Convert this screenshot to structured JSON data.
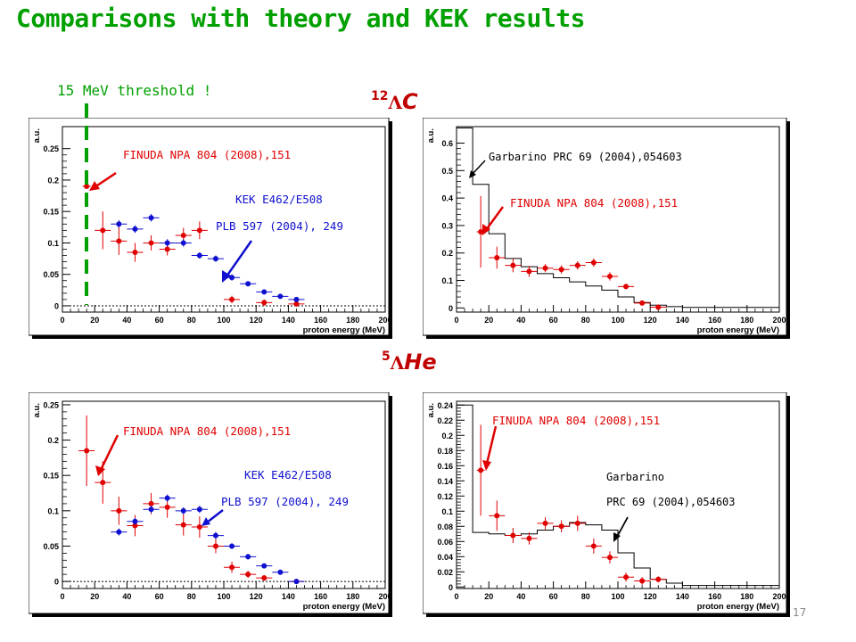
{
  "title": "Comparisons with theory and KEK results",
  "threshold_label": "15 MeV threshold !",
  "page_number": "17",
  "nuclei": {
    "c12": {
      "mass": "12",
      "lambda": "Λ",
      "element": "C"
    },
    "he5": {
      "mass": "5",
      "lambda": "Λ",
      "element": "He"
    }
  },
  "annotations": {
    "finuda": "FINUDA   NPA 804 (2008),151",
    "kek_line1": "KEK E462/E508",
    "kek_line2": "PLB 597 (2004), 249",
    "garbarino_c12": "Garbarino  PRC 69 (2004),054603",
    "garbarino_he_1": "Garbarino",
    "garbarino_he_2": "PRC 69 (2004),054603"
  },
  "colors": {
    "finuda": "#e00000",
    "kek": "#1010d0",
    "title": "#00a000",
    "threshold_line": "#00a000",
    "nucleus_label": "#c00000"
  },
  "chart_data": [
    {
      "type": "scatter",
      "panel": "top-left",
      "xlabel": "proton energy (MeV)",
      "ylabel": "a.u.",
      "xlim": [
        0,
        200
      ],
      "ylim": [
        -0.01,
        0.285
      ],
      "xticks": [
        0,
        20,
        40,
        60,
        80,
        100,
        120,
        140,
        160,
        180,
        200
      ],
      "yticks": [
        0,
        0.05,
        0.1,
        0.15,
        0.2,
        0.25
      ],
      "zero_line": true,
      "threshold_x": 15,
      "series": [
        {
          "name": "FINUDA",
          "color": "#e00000",
          "points": [
            {
              "x": 15,
              "y": 0.19,
              "ex": 2.5,
              "ey": 0.0
            },
            {
              "x": 25,
              "y": 0.12,
              "ex": 5,
              "ey": 0.03
            },
            {
              "x": 35,
              "y": 0.103,
              "ex": 5,
              "ey": 0.022
            },
            {
              "x": 45,
              "y": 0.085,
              "ex": 5,
              "ey": 0.015
            },
            {
              "x": 55,
              "y": 0.1,
              "ex": 5,
              "ey": 0.012
            },
            {
              "x": 65,
              "y": 0.09,
              "ex": 5,
              "ey": 0.01
            },
            {
              "x": 75,
              "y": 0.112,
              "ex": 5,
              "ey": 0.012
            },
            {
              "x": 85,
              "y": 0.12,
              "ex": 5,
              "ey": 0.014
            },
            {
              "x": 105,
              "y": 0.01,
              "ex": 5,
              "ey": 0.006
            },
            {
              "x": 125,
              "y": 0.005,
              "ex": 5,
              "ey": 0.005
            },
            {
              "x": 145,
              "y": 0.003,
              "ex": 5,
              "ey": 0.003
            }
          ]
        },
        {
          "name": "KEK",
          "color": "#1010d0",
          "points": [
            {
              "x": 35,
              "y": 0.13,
              "ex": 5,
              "ey": 0.006
            },
            {
              "x": 45,
              "y": 0.122,
              "ex": 5,
              "ey": 0.006
            },
            {
              "x": 55,
              "y": 0.14,
              "ex": 5,
              "ey": 0.006
            },
            {
              "x": 65,
              "y": 0.1,
              "ex": 5,
              "ey": 0.006
            },
            {
              "x": 75,
              "y": 0.1,
              "ex": 5,
              "ey": 0.006
            },
            {
              "x": 85,
              "y": 0.08,
              "ex": 5,
              "ey": 0.005
            },
            {
              "x": 95,
              "y": 0.075,
              "ex": 5,
              "ey": 0.005
            },
            {
              "x": 105,
              "y": 0.045,
              "ex": 5,
              "ey": 0.005
            },
            {
              "x": 115,
              "y": 0.035,
              "ex": 5,
              "ey": 0.004
            },
            {
              "x": 125,
              "y": 0.022,
              "ex": 5,
              "ey": 0.004
            },
            {
              "x": 135,
              "y": 0.015,
              "ex": 5,
              "ey": 0.003
            },
            {
              "x": 145,
              "y": 0.01,
              "ex": 5,
              "ey": 0.003
            }
          ]
        }
      ]
    },
    {
      "type": "scatter",
      "panel": "top-right",
      "xlabel": "proton energy (MeV)",
      "ylabel": "a.u.",
      "xlim": [
        0,
        200
      ],
      "ylim": [
        -0.015,
        0.66
      ],
      "xticks": [
        0,
        20,
        40,
        60,
        80,
        100,
        120,
        140,
        160,
        180,
        200
      ],
      "yticks": [
        0,
        0.1,
        0.2,
        0.3,
        0.4,
        0.5,
        0.6
      ],
      "zero_line": false,
      "histogram": {
        "name": "Garbarino",
        "edges": [
          0,
          10,
          20,
          30,
          40,
          50,
          60,
          70,
          80,
          90,
          100,
          110,
          120,
          130,
          140,
          200
        ],
        "values": [
          0.655,
          0.45,
          0.27,
          0.18,
          0.15,
          0.125,
          0.11,
          0.095,
          0.08,
          0.065,
          0.04,
          0.02,
          0.01,
          0.005,
          0.002
        ]
      },
      "series": [
        {
          "name": "FINUDA",
          "color": "#e00000",
          "points": [
            {
              "x": 15,
              "y": 0.277,
              "ex": 2.5,
              "ey": 0.13
            },
            {
              "x": 25,
              "y": 0.183,
              "ex": 5,
              "ey": 0.04
            },
            {
              "x": 35,
              "y": 0.155,
              "ex": 5,
              "ey": 0.025
            },
            {
              "x": 45,
              "y": 0.133,
              "ex": 5,
              "ey": 0.02
            },
            {
              "x": 55,
              "y": 0.145,
              "ex": 5,
              "ey": 0.015
            },
            {
              "x": 65,
              "y": 0.14,
              "ex": 5,
              "ey": 0.015
            },
            {
              "x": 75,
              "y": 0.155,
              "ex": 5,
              "ey": 0.015
            },
            {
              "x": 85,
              "y": 0.165,
              "ex": 5,
              "ey": 0.015
            },
            {
              "x": 95,
              "y": 0.115,
              "ex": 5,
              "ey": 0.015
            },
            {
              "x": 105,
              "y": 0.078,
              "ex": 5,
              "ey": 0.01
            },
            {
              "x": 115,
              "y": 0.018,
              "ex": 5,
              "ey": 0.006
            },
            {
              "x": 125,
              "y": 0.003,
              "ex": 5,
              "ey": 0.003
            }
          ]
        }
      ]
    },
    {
      "type": "scatter",
      "panel": "bottom-left",
      "xlabel": "proton energy (MeV)",
      "ylabel": "a.u.",
      "xlim": [
        0,
        200
      ],
      "ylim": [
        -0.01,
        0.255
      ],
      "xticks": [
        0,
        20,
        40,
        60,
        80,
        100,
        120,
        140,
        160,
        180,
        200
      ],
      "yticks": [
        0,
        0.05,
        0.1,
        0.15,
        0.2,
        0.25
      ],
      "zero_line": true,
      "series": [
        {
          "name": "FINUDA",
          "color": "#e00000",
          "points": [
            {
              "x": 15,
              "y": 0.185,
              "ex": 5,
              "ey": 0.05
            },
            {
              "x": 25,
              "y": 0.14,
              "ex": 5,
              "ey": 0.03
            },
            {
              "x": 35,
              "y": 0.1,
              "ex": 5,
              "ey": 0.02
            },
            {
              "x": 45,
              "y": 0.079,
              "ex": 5,
              "ey": 0.015
            },
            {
              "x": 55,
              "y": 0.11,
              "ex": 5,
              "ey": 0.015
            },
            {
              "x": 65,
              "y": 0.105,
              "ex": 5,
              "ey": 0.015
            },
            {
              "x": 75,
              "y": 0.08,
              "ex": 5,
              "ey": 0.015
            },
            {
              "x": 85,
              "y": 0.077,
              "ex": 5,
              "ey": 0.015
            },
            {
              "x": 95,
              "y": 0.05,
              "ex": 5,
              "ey": 0.01
            },
            {
              "x": 105,
              "y": 0.02,
              "ex": 5,
              "ey": 0.008
            },
            {
              "x": 115,
              "y": 0.01,
              "ex": 5,
              "ey": 0.005
            },
            {
              "x": 125,
              "y": 0.005,
              "ex": 5,
              "ey": 0.004
            },
            {
              "x": 145,
              "y": 0.0,
              "ex": 5,
              "ey": 0.003
            }
          ]
        },
        {
          "name": "KEK",
          "color": "#1010d0",
          "points": [
            {
              "x": 35,
              "y": 0.07,
              "ex": 5,
              "ey": 0.005
            },
            {
              "x": 45,
              "y": 0.085,
              "ex": 5,
              "ey": 0.005
            },
            {
              "x": 55,
              "y": 0.102,
              "ex": 5,
              "ey": 0.005
            },
            {
              "x": 65,
              "y": 0.118,
              "ex": 5,
              "ey": 0.005
            },
            {
              "x": 75,
              "y": 0.1,
              "ex": 5,
              "ey": 0.005
            },
            {
              "x": 85,
              "y": 0.102,
              "ex": 5,
              "ey": 0.005
            },
            {
              "x": 95,
              "y": 0.065,
              "ex": 5,
              "ey": 0.005
            },
            {
              "x": 105,
              "y": 0.05,
              "ex": 5,
              "ey": 0.004
            },
            {
              "x": 115,
              "y": 0.035,
              "ex": 5,
              "ey": 0.004
            },
            {
              "x": 125,
              "y": 0.022,
              "ex": 5,
              "ey": 0.003
            },
            {
              "x": 135,
              "y": 0.013,
              "ex": 5,
              "ey": 0.003
            },
            {
              "x": 145,
              "y": 0.0,
              "ex": 5,
              "ey": 0.003
            }
          ]
        }
      ]
    },
    {
      "type": "scatter",
      "panel": "bottom-right",
      "xlabel": "proton energy (MeV)",
      "ylabel": "a.u.",
      "xlim": [
        0,
        200
      ],
      "ylim": [
        -0.002,
        0.245
      ],
      "xticks": [
        0,
        20,
        40,
        60,
        80,
        100,
        120,
        140,
        160,
        180,
        200
      ],
      "yticks": [
        0,
        0.02,
        0.04,
        0.06,
        0.08,
        0.1,
        0.12,
        0.14,
        0.16,
        0.18,
        0.2,
        0.22,
        0.24
      ],
      "zero_line": false,
      "histogram": {
        "name": "Garbarino",
        "edges": [
          0,
          10,
          20,
          30,
          40,
          50,
          60,
          70,
          80,
          90,
          100,
          110,
          120,
          130,
          140,
          200
        ],
        "values": [
          0.24,
          0.072,
          0.07,
          0.068,
          0.07,
          0.075,
          0.08,
          0.085,
          0.082,
          0.075,
          0.045,
          0.025,
          0.01,
          0.005,
          0.002
        ]
      },
      "series": [
        {
          "name": "FINUDA",
          "color": "#e00000",
          "points": [
            {
              "x": 15,
              "y": 0.154,
              "ex": 2.5,
              "ey": 0.06
            },
            {
              "x": 25,
              "y": 0.094,
              "ex": 5,
              "ey": 0.02
            },
            {
              "x": 35,
              "y": 0.068,
              "ex": 5,
              "ey": 0.01
            },
            {
              "x": 45,
              "y": 0.064,
              "ex": 5,
              "ey": 0.008
            },
            {
              "x": 55,
              "y": 0.084,
              "ex": 5,
              "ey": 0.008
            },
            {
              "x": 65,
              "y": 0.08,
              "ex": 5,
              "ey": 0.008
            },
            {
              "x": 75,
              "y": 0.084,
              "ex": 5,
              "ey": 0.01
            },
            {
              "x": 85,
              "y": 0.054,
              "ex": 5,
              "ey": 0.01
            },
            {
              "x": 95,
              "y": 0.039,
              "ex": 5,
              "ey": 0.008
            },
            {
              "x": 105,
              "y": 0.013,
              "ex": 5,
              "ey": 0.006
            },
            {
              "x": 115,
              "y": 0.008,
              "ex": 5,
              "ey": 0.005
            },
            {
              "x": 125,
              "y": 0.01,
              "ex": 5,
              "ey": 0.004
            }
          ]
        }
      ]
    }
  ]
}
